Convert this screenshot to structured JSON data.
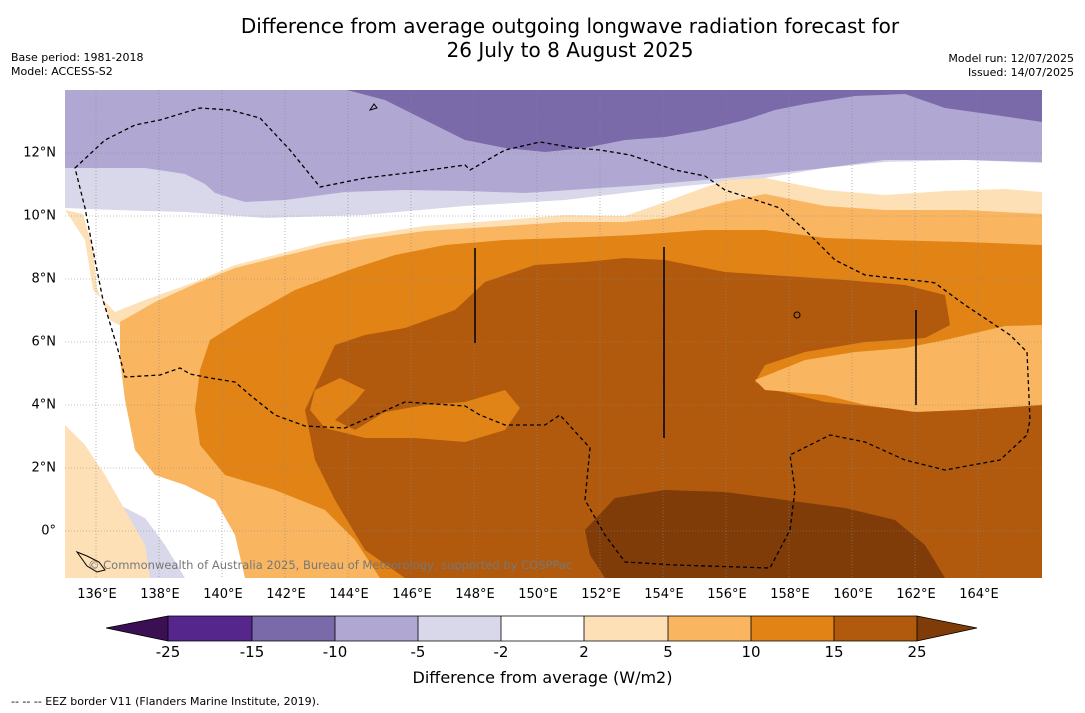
{
  "header": {
    "title_line1": "Difference from average outgoing longwave radiation forecast for",
    "title_line2": "26 July to 8 August 2025",
    "base_period": "Base period: 1981-2018",
    "model": "Model: ACCESS-S2",
    "model_run": "Model run: 12/07/2025",
    "issued": "Issued: 14/07/2025"
  },
  "map": {
    "x_ticks": [
      "136°E",
      "138°E",
      "140°E",
      "142°E",
      "144°E",
      "146°E",
      "148°E",
      "150°E",
      "152°E",
      "154°E",
      "156°E",
      "158°E",
      "160°E",
      "162°E",
      "164°E"
    ],
    "y_ticks": [
      "12°N",
      "10°N",
      "8°N",
      "6°N",
      "4°N",
      "2°N",
      "0°"
    ],
    "copyright": "© Commonwealth of Australia 2025, Bureau of Meteorology, supported by COSPPac"
  },
  "colorbar": {
    "labels": [
      "-25",
      "-15",
      "-10",
      "-5",
      "-2",
      "2",
      "5",
      "10",
      "15",
      "25"
    ],
    "colors": {
      "under": "#3b0f53",
      "c0": "#55268c",
      "c1": "#7a6aaa",
      "c2": "#b0a8d2",
      "c3": "#d8d8ea",
      "c4": "#ffffff",
      "c5": "#fde0b6",
      "c6": "#f9b560",
      "c7": "#e28315",
      "c8": "#b15a0d",
      "over": "#7f3b08"
    },
    "title": "Difference from average (W/m2)"
  },
  "footnote": "--  --  -- EEZ border V11 (Flanders Marine Institute, 2019)."
}
